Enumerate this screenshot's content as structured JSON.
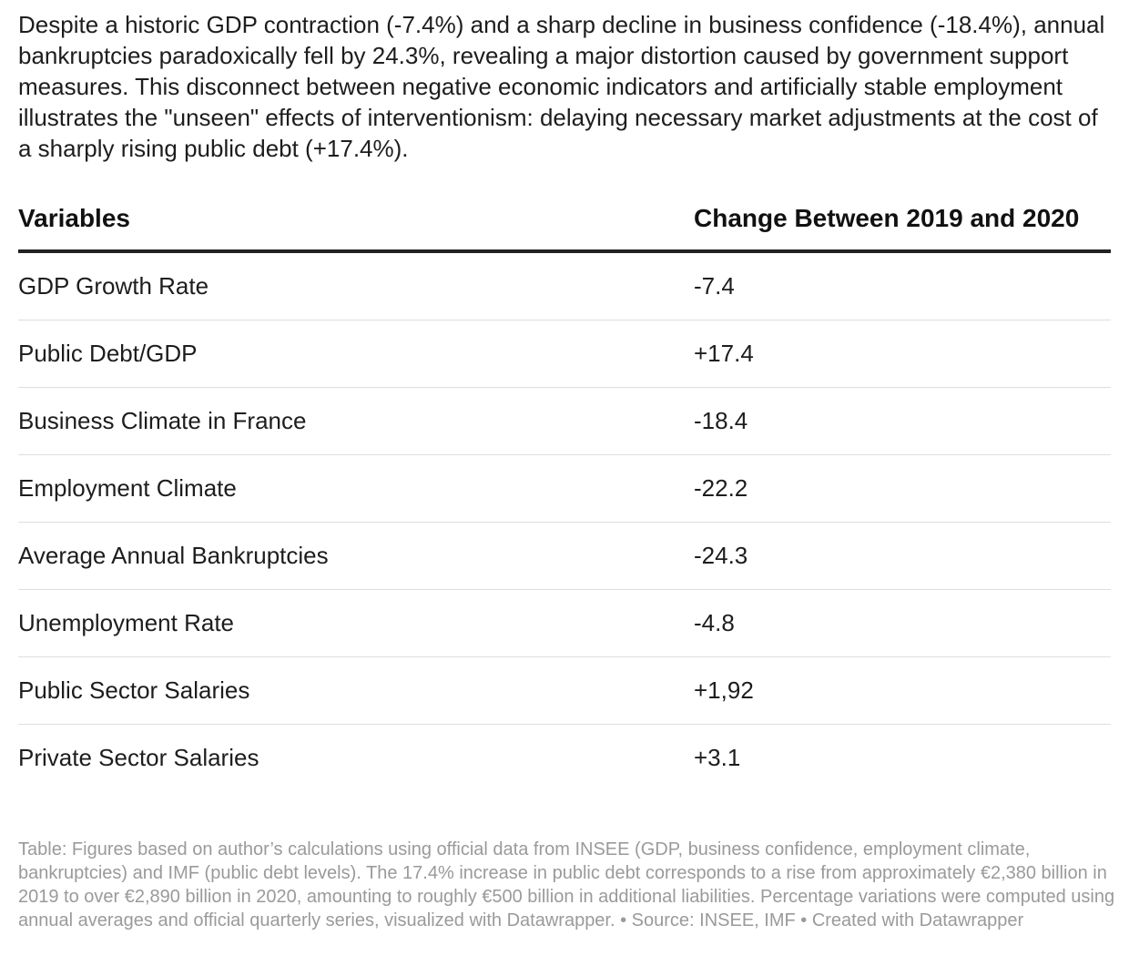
{
  "description": "Despite a historic GDP contraction (-7.4%) and a sharp decline in business confidence (-18.4%), annual bankruptcies paradoxically fell by 24.3%, revealing a major distortion caused by government support measures. This disconnect between negative economic indicators and artificially stable employment illustrates the \"unseen\" effects of interventionism: delaying necessary market adjustments at the cost of a sharply rising public debt (+17.4%).",
  "chart_data": {
    "type": "table",
    "columns": [
      "Variables",
      "Change Between 2019 and 2020"
    ],
    "rows": [
      [
        "GDP Growth Rate",
        "-7.4"
      ],
      [
        "Public Debt/GDP",
        "+17.4"
      ],
      [
        "Business Climate in France",
        "-18.4"
      ],
      [
        "Employment Climate",
        "-22.2"
      ],
      [
        "Average Annual Bankruptcies",
        "-24.3"
      ],
      [
        "Unemployment Rate",
        "-4.8"
      ],
      [
        "Public Sector Salaries",
        "+1,92"
      ],
      [
        "Private Sector Salaries",
        "+3.1"
      ]
    ]
  },
  "notes": "Table: Figures based on author’s calculations using official data from INSEE (GDP, business confidence, employment climate, bankruptcies) and IMF (public debt levels). The 17.4% increase in public debt corresponds to a rise from approximately €2,380 billion in 2019 to over €2,890 billion in 2020, amounting to roughly €500 billion in additional liabilities. Percentage variations were computed using annual averages and official quarterly series, visualized with Datawrapper. • Source: INSEE, IMF • Created with Datawrapper"
}
